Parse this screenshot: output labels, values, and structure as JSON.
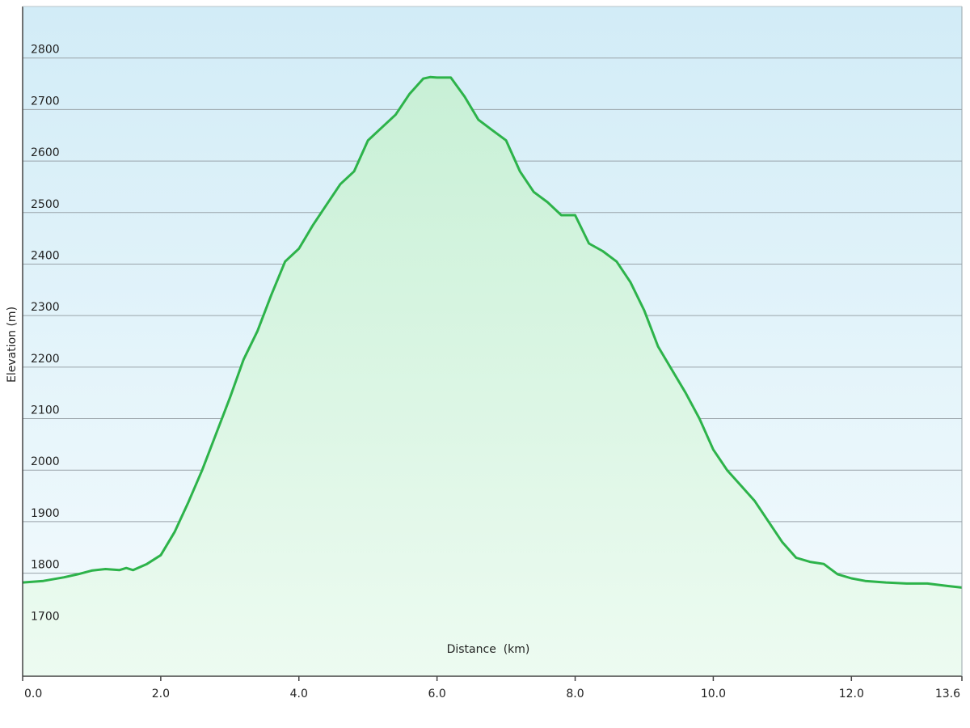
{
  "chart_data": {
    "type": "area",
    "title": "",
    "xlabel": "Distance  (km)",
    "ylabel": "Elevation (m)",
    "xlim": [
      0.0,
      13.6
    ],
    "ylim": [
      1600,
      2900
    ],
    "x_ticks": [
      "0.0",
      "2.0",
      "4.0",
      "6.0",
      "8.0",
      "10.0",
      "12.0",
      "13.6"
    ],
    "x_tick_values": [
      0.0,
      2.0,
      4.0,
      6.0,
      8.0,
      10.0,
      12.0,
      13.6
    ],
    "y_ticks": [
      "1700",
      "1800",
      "1900",
      "2000",
      "2100",
      "2200",
      "2300",
      "2400",
      "2500",
      "2600",
      "2700",
      "2800"
    ],
    "y_tick_values": [
      1700,
      1800,
      1900,
      2000,
      2100,
      2200,
      2300,
      2400,
      2500,
      2600,
      2700,
      2800
    ],
    "grid": "horizontal",
    "colors": {
      "line": "#2db34a",
      "fill_top": "#c8f0d6",
      "fill_bottom": "#edfbf1",
      "bg_top": "#d2ecf7",
      "bg_bottom": "#f4fbfd",
      "grid": "#9aa4aa"
    },
    "series": [
      {
        "x": [
          0.0,
          0.3,
          0.6,
          0.8,
          1.0,
          1.2,
          1.4,
          1.5,
          1.6,
          1.8,
          2.0,
          2.2,
          2.4,
          2.6,
          2.8,
          3.0,
          3.2,
          3.4,
          3.6,
          3.8,
          4.0,
          4.2,
          4.4,
          4.6,
          4.8,
          5.0,
          5.2,
          5.4,
          5.6,
          5.8,
          5.9,
          6.0,
          6.2,
          6.4,
          6.6,
          6.8,
          7.0,
          7.2,
          7.4,
          7.6,
          7.8,
          8.0,
          8.2,
          8.4,
          8.6,
          8.8,
          9.0,
          9.2,
          9.4,
          9.6,
          9.8,
          10.0,
          10.2,
          10.4,
          10.6,
          10.8,
          11.0,
          11.2,
          11.4,
          11.6,
          11.8,
          12.0,
          12.2,
          12.5,
          12.8,
          13.1,
          13.4,
          13.6
        ],
        "y": [
          1782,
          1785,
          1792,
          1798,
          1805,
          1808,
          1806,
          1810,
          1806,
          1818,
          1835,
          1880,
          1938,
          2000,
          2070,
          2140,
          2215,
          2270,
          2340,
          2405,
          2430,
          2475,
          2515,
          2555,
          2580,
          2640,
          2665,
          2690,
          2730,
          2760,
          2763,
          2762,
          2762,
          2725,
          2680,
          2660,
          2640,
          2580,
          2540,
          2520,
          2495,
          2495,
          2440,
          2425,
          2405,
          2365,
          2310,
          2240,
          2195,
          2150,
          2100,
          2040,
          2000,
          1970,
          1940,
          1900,
          1860,
          1830,
          1822,
          1818,
          1798,
          1790,
          1785,
          1782,
          1780,
          1780,
          1775,
          1772
        ]
      }
    ]
  }
}
